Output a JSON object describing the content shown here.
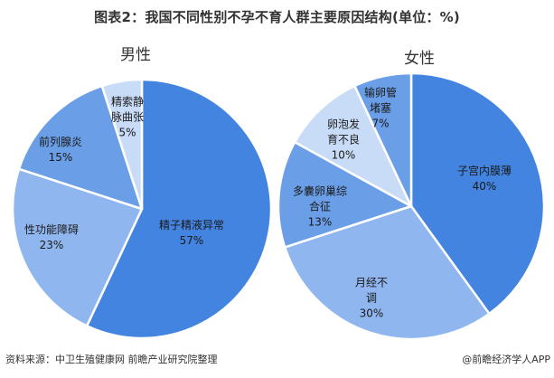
{
  "title": "图表2：我国不同性别不孕不育人群主要原因结构(单位：%)",
  "footer": {
    "source": "资料来源：中卫生殖健康网 前瞻产业研究院整理",
    "credit": "@前瞻经济学人APP"
  },
  "colors": {
    "dark": "#4384e0",
    "medium": "#6a9ee6",
    "light": "#8fb6ee",
    "pale": "#c9dcf7",
    "separator": "#ffffff"
  },
  "chart_data": [
    {
      "type": "pie",
      "title": "男性",
      "start_angle": "12 o'clock, clockwise",
      "categories": [
        "精子精液异常",
        "性功能障碍",
        "前列腺炎",
        "精索静脉曲张"
      ],
      "values": [
        57,
        23,
        15,
        5
      ],
      "labels": [
        {
          "name": "精子精液异常",
          "lines": [
            "精子精液异常"
          ],
          "pct": "57%"
        },
        {
          "name": "性功能障碍",
          "lines": [
            "性功能障碍"
          ],
          "pct": "23%"
        },
        {
          "name": "前列腺炎",
          "lines": [
            "前列腺炎"
          ],
          "pct": "15%"
        },
        {
          "name": "精索静脉曲张",
          "lines": [
            "精索静",
            "脉曲张"
          ],
          "pct": "5%"
        }
      ],
      "slice_colors": [
        "#4384e0",
        "#8fb6ee",
        "#6a9ee6",
        "#c9dcf7"
      ]
    },
    {
      "type": "pie",
      "title": "女性",
      "start_angle": "12 o'clock, clockwise",
      "categories": [
        "子宫内膜薄",
        "月经不调",
        "多囊卵巢综合征",
        "卵泡发育不良",
        "输卵管堵塞"
      ],
      "values": [
        40,
        30,
        13,
        10,
        7
      ],
      "labels": [
        {
          "name": "子宫内膜薄",
          "lines": [
            "子宫内膜薄"
          ],
          "pct": "40%"
        },
        {
          "name": "月经不调",
          "lines": [
            "月经不",
            "调"
          ],
          "pct": "30%"
        },
        {
          "name": "多囊卵巢综合征",
          "lines": [
            "多囊卵巢综",
            "合征"
          ],
          "pct": "13%"
        },
        {
          "name": "卵泡发育不良",
          "lines": [
            "卵泡发",
            "育不良"
          ],
          "pct": "10%"
        },
        {
          "name": "输卵管堵塞",
          "lines": [
            "输卵管",
            "堵塞"
          ],
          "pct": "7%"
        }
      ],
      "slice_colors": [
        "#4384e0",
        "#8fb6ee",
        "#6a9ee6",
        "#c9dcf7",
        "#6a9ee6"
      ]
    }
  ],
  "subtitles": {
    "male": "男性",
    "female": "女性"
  }
}
